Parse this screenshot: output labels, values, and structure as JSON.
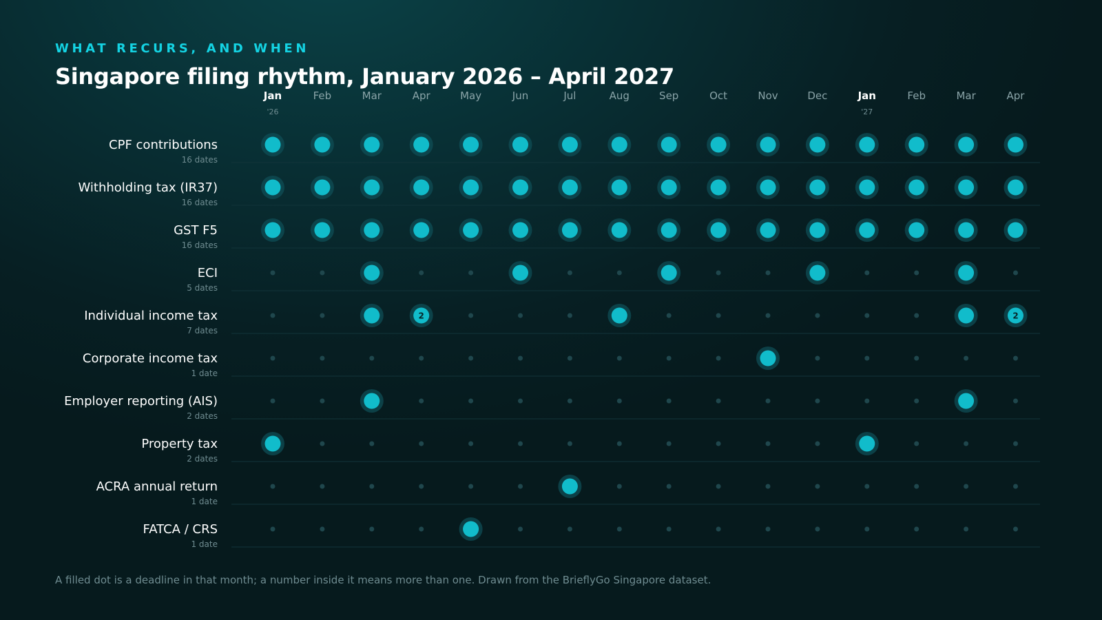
{
  "header": {
    "eyebrow": "WHAT RECURS, AND WHEN",
    "title": "Singapore filing rhythm, January 2026 – April 2027"
  },
  "footnote": "A filled dot is a deadline in that month; a number inside it means more than one. Drawn from the BrieflyGo Singapore dataset.",
  "colors": {
    "accent": "#14d3e3",
    "dot": "#11bccb",
    "halo": "#0f4e55",
    "empty_dot": "#1f474d",
    "row_label": "#ffffff",
    "row_sublabel": "#6f8c91",
    "month_label": "#8aa4a8",
    "gridline": "#12343a"
  },
  "chart_data": {
    "type": "dot-matrix",
    "title": "Singapore filing rhythm, January 2026 – April 2027",
    "columns": [
      {
        "month": "Jan",
        "year": "'26",
        "emphasis": true
      },
      {
        "month": "Feb"
      },
      {
        "month": "Mar"
      },
      {
        "month": "Apr"
      },
      {
        "month": "May"
      },
      {
        "month": "Jun"
      },
      {
        "month": "Jul"
      },
      {
        "month": "Aug"
      },
      {
        "month": "Sep"
      },
      {
        "month": "Oct"
      },
      {
        "month": "Nov"
      },
      {
        "month": "Dec"
      },
      {
        "month": "Jan",
        "year": "'27",
        "emphasis": true
      },
      {
        "month": "Feb"
      },
      {
        "month": "Mar"
      },
      {
        "month": "Apr"
      }
    ],
    "rows": [
      {
        "label": "CPF contributions",
        "sublabel": "16 dates",
        "counts": [
          1,
          1,
          1,
          1,
          1,
          1,
          1,
          1,
          1,
          1,
          1,
          1,
          1,
          1,
          1,
          1
        ]
      },
      {
        "label": "Withholding tax (IR37)",
        "sublabel": "16 dates",
        "counts": [
          1,
          1,
          1,
          1,
          1,
          1,
          1,
          1,
          1,
          1,
          1,
          1,
          1,
          1,
          1,
          1
        ]
      },
      {
        "label": "GST F5",
        "sublabel": "16 dates",
        "counts": [
          1,
          1,
          1,
          1,
          1,
          1,
          1,
          1,
          1,
          1,
          1,
          1,
          1,
          1,
          1,
          1
        ]
      },
      {
        "label": "ECI",
        "sublabel": "5 dates",
        "counts": [
          0,
          0,
          1,
          0,
          0,
          1,
          0,
          0,
          1,
          0,
          0,
          1,
          0,
          0,
          1,
          0
        ]
      },
      {
        "label": "Individual income tax",
        "sublabel": "7 dates",
        "counts": [
          0,
          0,
          1,
          2,
          0,
          0,
          0,
          1,
          0,
          0,
          0,
          0,
          0,
          0,
          1,
          2
        ]
      },
      {
        "label": "Corporate income tax",
        "sublabel": "1 date",
        "counts": [
          0,
          0,
          0,
          0,
          0,
          0,
          0,
          0,
          0,
          0,
          1,
          0,
          0,
          0,
          0,
          0
        ]
      },
      {
        "label": "Employer reporting (AIS)",
        "sublabel": "2 dates",
        "counts": [
          0,
          0,
          1,
          0,
          0,
          0,
          0,
          0,
          0,
          0,
          0,
          0,
          0,
          0,
          1,
          0
        ]
      },
      {
        "label": "Property tax",
        "sublabel": "2 dates",
        "counts": [
          1,
          0,
          0,
          0,
          0,
          0,
          0,
          0,
          0,
          0,
          0,
          0,
          1,
          0,
          0,
          0
        ]
      },
      {
        "label": "ACRA annual return",
        "sublabel": "1 date",
        "counts": [
          0,
          0,
          0,
          0,
          0,
          0,
          1,
          0,
          0,
          0,
          0,
          0,
          0,
          0,
          0,
          0
        ]
      },
      {
        "label": "FATCA / CRS",
        "sublabel": "1 date",
        "counts": [
          0,
          0,
          0,
          0,
          1,
          0,
          0,
          0,
          0,
          0,
          0,
          0,
          0,
          0,
          0,
          0
        ]
      }
    ]
  }
}
